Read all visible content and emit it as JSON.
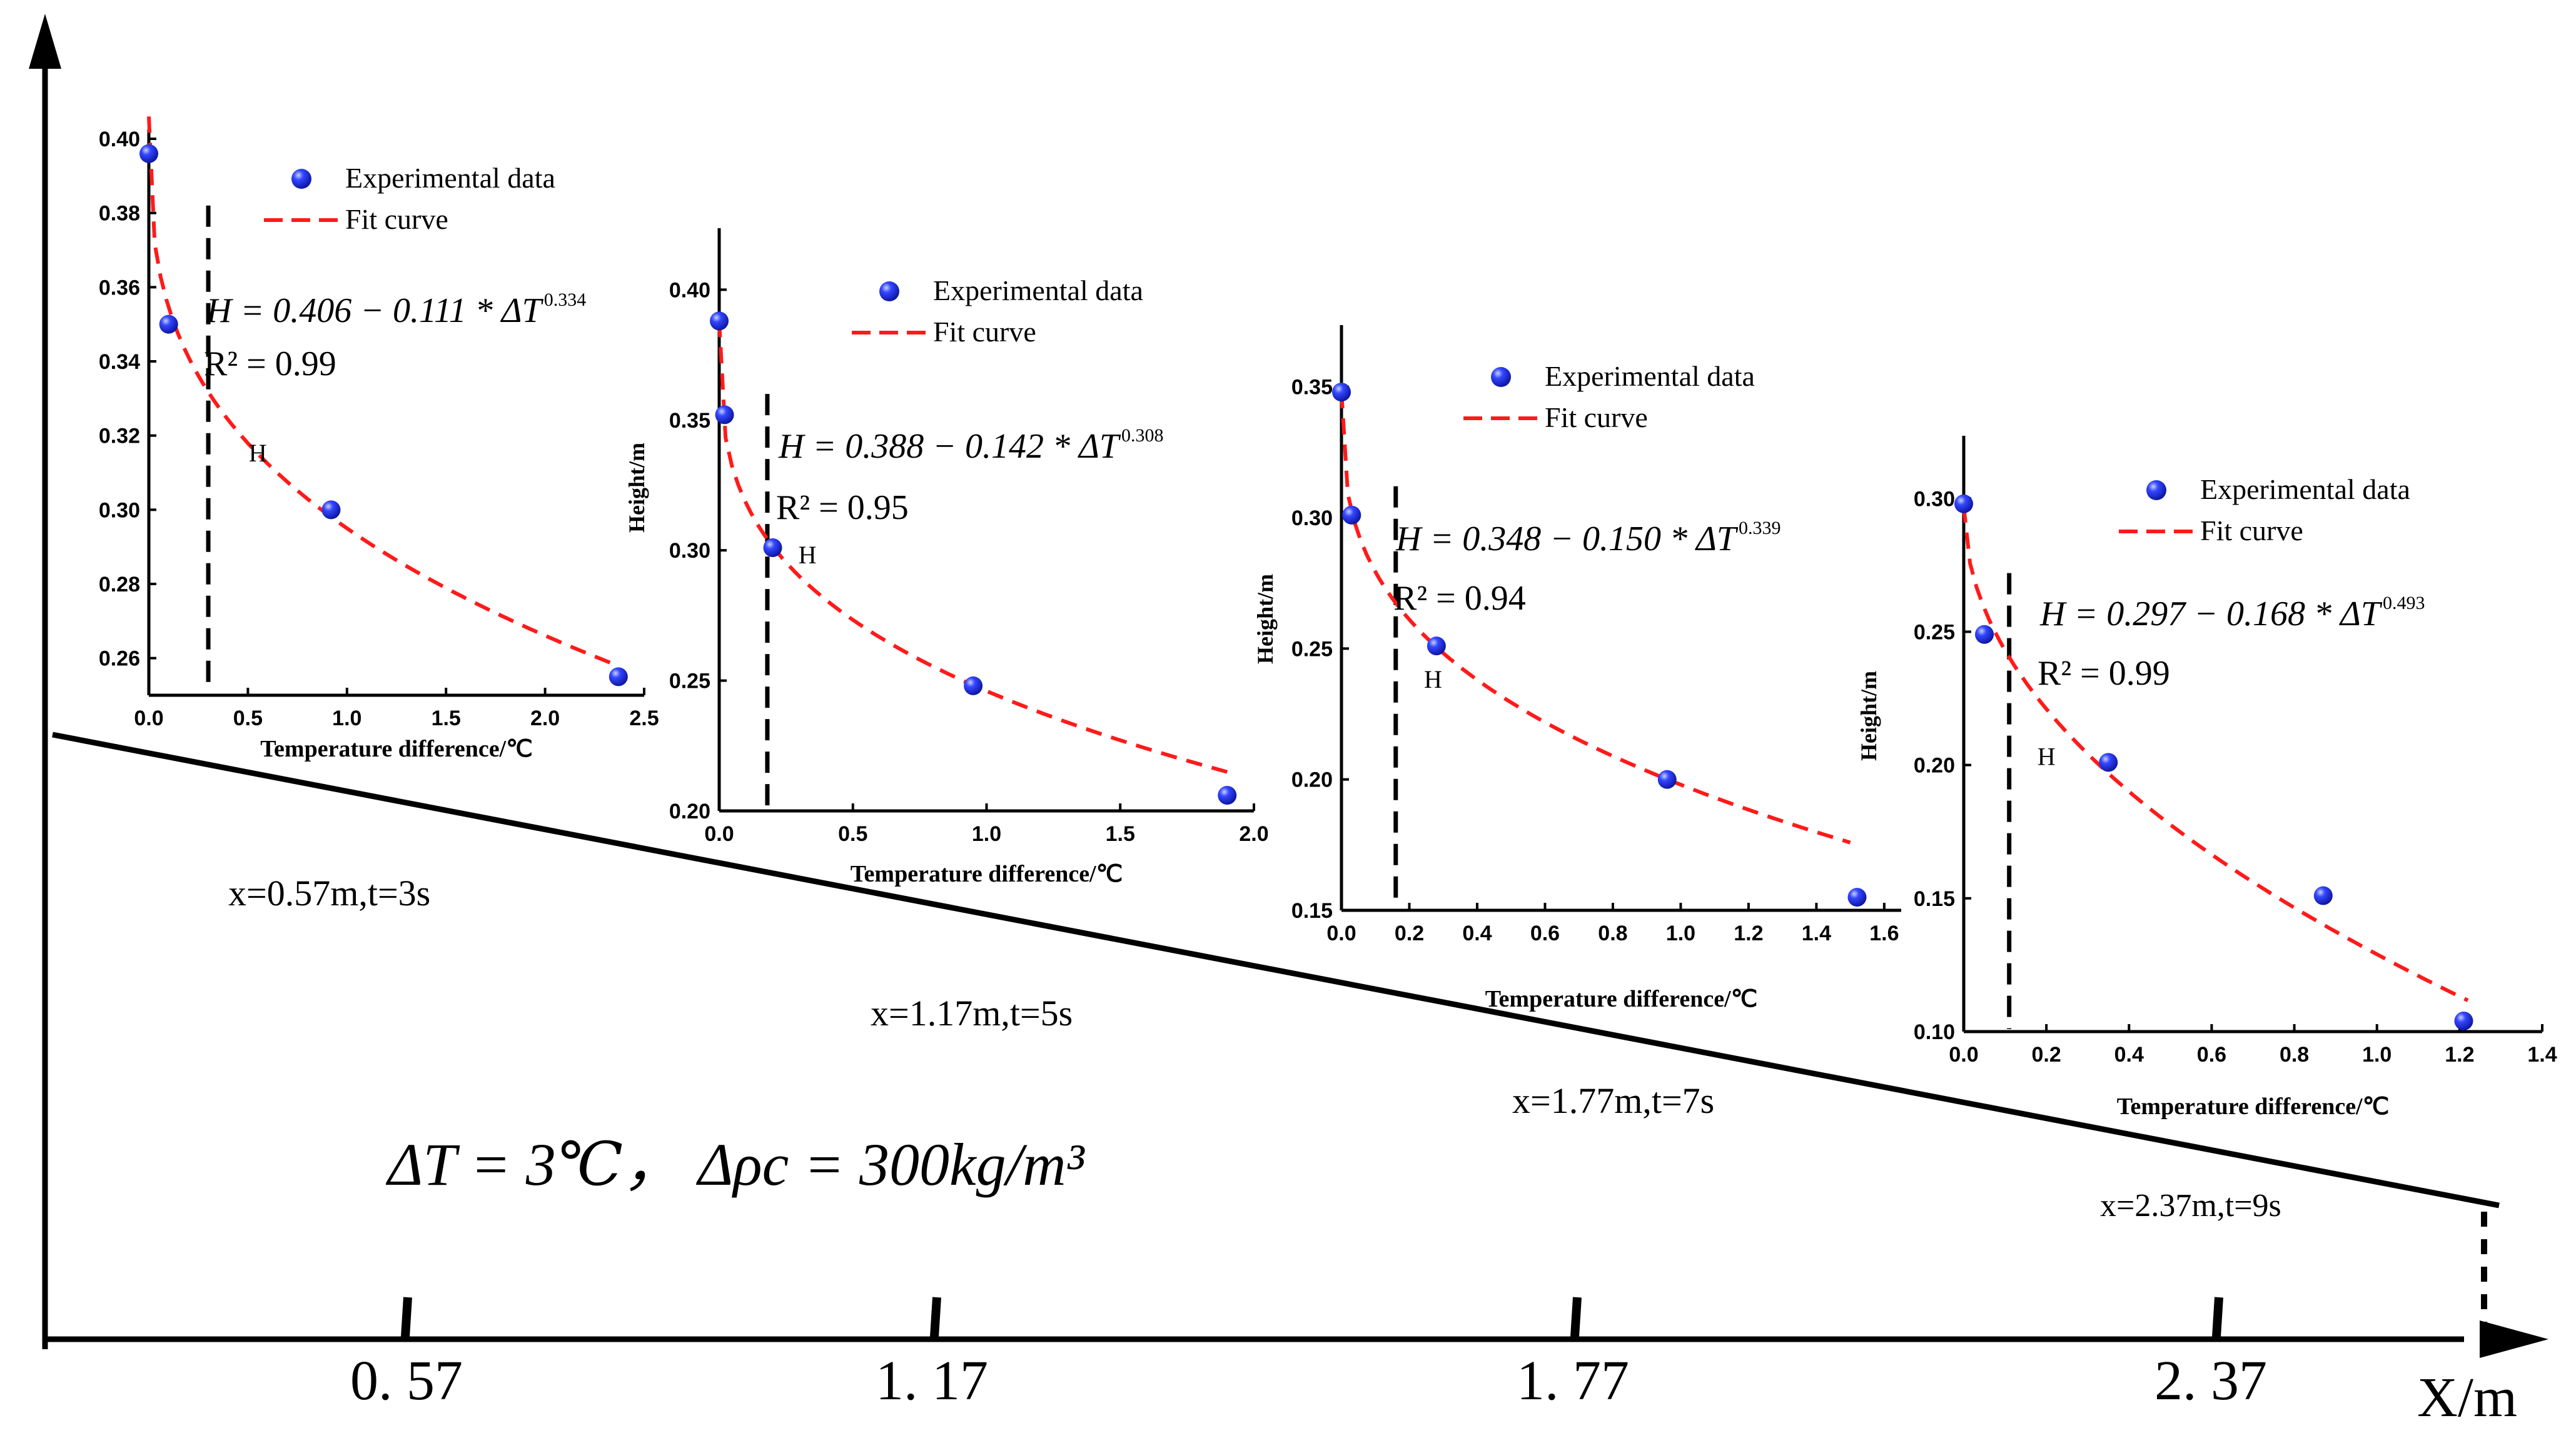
{
  "colors": {
    "axis": "#000000",
    "point": "#1f2ee6",
    "point_highlight": "#9aa6ff",
    "fit": "#ff1a1a",
    "guide": "#000000"
  },
  "main": {
    "x_axis_label": "X/m",
    "ticks": [
      "0. 57",
      "1. 17",
      "1. 77",
      "2. 37"
    ],
    "formula": "ΔT = 3℃，  Δρc = 300kg/m³",
    "stations": [
      "x=0.57m,t=3s",
      "x=1.17m,t=5s",
      "x=1.77m,t=7s",
      "x=2.37m,t=9s"
    ]
  },
  "chart_data": [
    {
      "type": "scatter",
      "xlabel": "Temperature difference/℃",
      "ylabel": "",
      "xlim": [
        0,
        2.5
      ],
      "ylim": [
        0.25,
        0.4
      ],
      "xticks": [
        "0.0",
        "0.5",
        "1.0",
        "1.5",
        "2.0",
        "2.5"
      ],
      "yticks": [
        "0.26",
        "0.28",
        "0.30",
        "0.32",
        "0.34",
        "0.36",
        "0.38",
        "0.40"
      ],
      "x": [
        0.0,
        0.1,
        0.92,
        2.37
      ],
      "y": [
        0.396,
        0.35,
        0.3,
        0.255
      ],
      "fit": {
        "a": 0.406,
        "b": 0.111,
        "c": 0.334,
        "x_max": 2.37
      },
      "eq": "H = 0.406 − 0.111 * ΔT",
      "exp": "0.334",
      "r2": "R² = 0.99",
      "marker": "H",
      "legend": [
        "Experimental data",
        "Fit curve"
      ]
    },
    {
      "type": "scatter",
      "xlabel": "Temperature difference/℃",
      "ylabel": "Height/m",
      "xlim": [
        0,
        2.0
      ],
      "ylim": [
        0.2,
        0.42
      ],
      "xticks": [
        "0.0",
        "0.5",
        "1.0",
        "1.5",
        "2.0"
      ],
      "yticks": [
        "0.20",
        "0.25",
        "0.30",
        "0.35",
        "0.40"
      ],
      "x": [
        0.0,
        0.02,
        0.2,
        0.95,
        1.9
      ],
      "y": [
        0.388,
        0.352,
        0.301,
        0.248,
        0.206
      ],
      "fit": {
        "a": 0.388,
        "b": 0.142,
        "c": 0.308,
        "x_max": 1.9
      },
      "eq": "H = 0.388 − 0.142 * ΔT",
      "exp": "0.308",
      "r2": "R² = 0.95",
      "marker": "H",
      "legend": [
        "Experimental data",
        "Fit curve"
      ]
    },
    {
      "type": "scatter",
      "xlabel": "Temperature difference/℃",
      "ylabel": "Height/m",
      "xlim": [
        0,
        1.65
      ],
      "ylim": [
        0.15,
        0.37
      ],
      "xticks": [
        "0.0",
        "0.2",
        "0.4",
        "0.6",
        "0.8",
        "1.0",
        "1.2",
        "1.4",
        "1.6"
      ],
      "yticks": [
        "0.15",
        "0.20",
        "0.25",
        "0.30",
        "0.35"
      ],
      "x": [
        0.0,
        0.03,
        0.28,
        0.96,
        1.52
      ],
      "y": [
        0.348,
        0.301,
        0.251,
        0.2,
        0.155
      ],
      "fit": {
        "a": 0.348,
        "b": 0.15,
        "c": 0.339,
        "x_max": 1.5
      },
      "eq": "H = 0.348 − 0.150 * ΔT",
      "exp": "0.339",
      "r2": "R² = 0.94",
      "marker": "H",
      "legend": [
        "Experimental data",
        "Fit curve"
      ]
    },
    {
      "type": "scatter",
      "xlabel": "Temperature difference/℃",
      "ylabel": "Height/m",
      "xlim": [
        0,
        1.4
      ],
      "ylim": [
        0.1,
        0.32
      ],
      "xticks": [
        "0.0",
        "0.2",
        "0.4",
        "0.6",
        "0.8",
        "1.0",
        "1.2",
        "1.4"
      ],
      "yticks": [
        "0.10",
        "0.15",
        "0.20",
        "0.25",
        "0.30"
      ],
      "x": [
        0.0,
        0.05,
        0.35,
        0.87,
        1.21
      ],
      "y": [
        0.298,
        0.249,
        0.201,
        0.151,
        0.104
      ],
      "fit": {
        "a": 0.297,
        "b": 0.168,
        "c": 0.493,
        "x_max": 1.22
      },
      "eq": "H = 0.297 − 0.168 * ΔT",
      "exp": "0.493",
      "r2": "R² = 0.99",
      "marker": "H",
      "legend": [
        "Experimental data",
        "Fit curve"
      ]
    }
  ]
}
